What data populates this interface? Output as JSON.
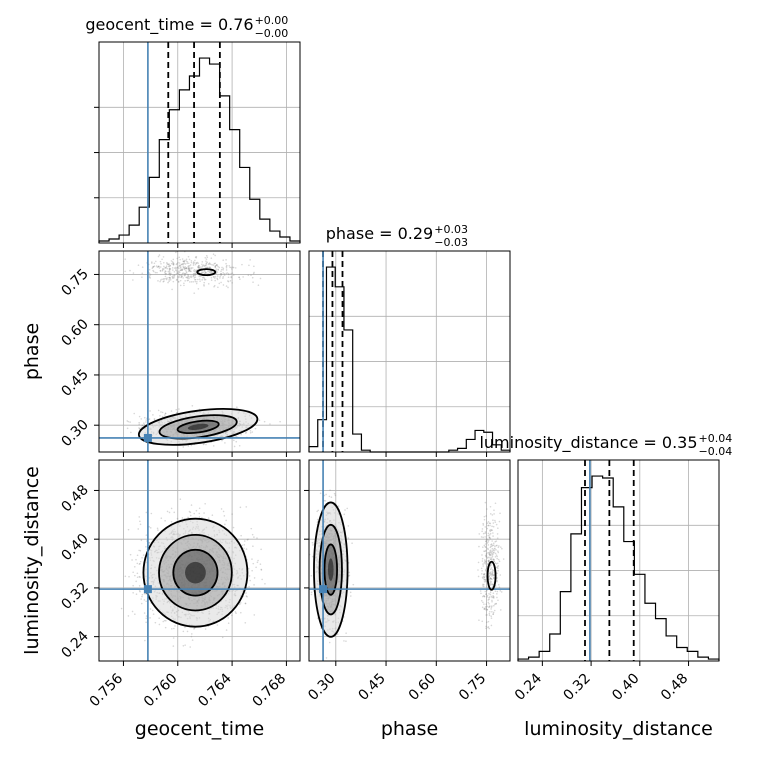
{
  "chart_data": {
    "type": "corner",
    "parameters": [
      "geocent_time",
      "phase",
      "luminosity_distance"
    ],
    "truths": {
      "geocent_time": 0.7578,
      "phase": 0.262,
      "luminosity_distance": 0.318
    },
    "titles": [
      {
        "param": "geocent_time",
        "text": "geocent_time = 0.76",
        "sup": "+0.00",
        "sub": "−0.00"
      },
      {
        "param": "phase",
        "text": "phase = 0.29",
        "sup": "+0.03",
        "sub": "−0.03"
      },
      {
        "param": "luminosity_distance",
        "text": "luminosity_distance = 0.35",
        "sup": "+0.04",
        "sub": "−0.04"
      }
    ],
    "axis_labels": {
      "x": [
        "geocent_time",
        "phase",
        "luminosity_distance"
      ],
      "y": [
        "phase",
        "luminosity_distance"
      ]
    },
    "ranges": {
      "geocent_time": [
        0.7542,
        0.769
      ],
      "phase": [
        0.22,
        0.82
      ],
      "luminosity_distance": [
        0.2,
        0.53
      ]
    },
    "ticks": {
      "geocent_time": [
        "0.756",
        "0.760",
        "0.764",
        "0.768"
      ],
      "phase": [
        "0.30",
        "0.45",
        "0.60",
        "0.75"
      ],
      "luminosity_distance": [
        "0.24",
        "0.32",
        "0.40",
        "0.48"
      ]
    },
    "grid": true,
    "quantiles": {
      "geocent_time": [
        0.7593,
        0.7612,
        0.7631
      ],
      "phase": [
        0.262,
        0.29,
        0.32
      ],
      "luminosity_distance": [
        0.31,
        0.35,
        0.39
      ]
    },
    "histograms": {
      "geocent_time": {
        "edges_start": 0.7542,
        "edges_end": 0.769,
        "counts": [
          1,
          2,
          4,
          9,
          18,
          33,
          52,
          67,
          77,
          84,
          93,
          90,
          74,
          57,
          38,
          22,
          12,
          6,
          3,
          1
        ]
      },
      "phase": {
        "edges_start": 0.22,
        "edges_end": 0.82,
        "counts": [
          3,
          18,
          103,
          92,
          68,
          10,
          1,
          0,
          0,
          0,
          0,
          0,
          0,
          0,
          0,
          0,
          1,
          2,
          7,
          12,
          11,
          4,
          1
        ]
      },
      "luminosity_distance": {
        "edges_start": 0.2,
        "edges_end": 0.53,
        "counts": [
          1,
          2,
          5,
          14,
          36,
          66,
          90,
          96,
          95,
          80,
          62,
          45,
          30,
          22,
          13,
          7,
          5,
          2,
          1
        ]
      }
    },
    "line_color": "#000000",
    "truth_color": "#4682b4",
    "grid_color": "#b0b0b0"
  }
}
